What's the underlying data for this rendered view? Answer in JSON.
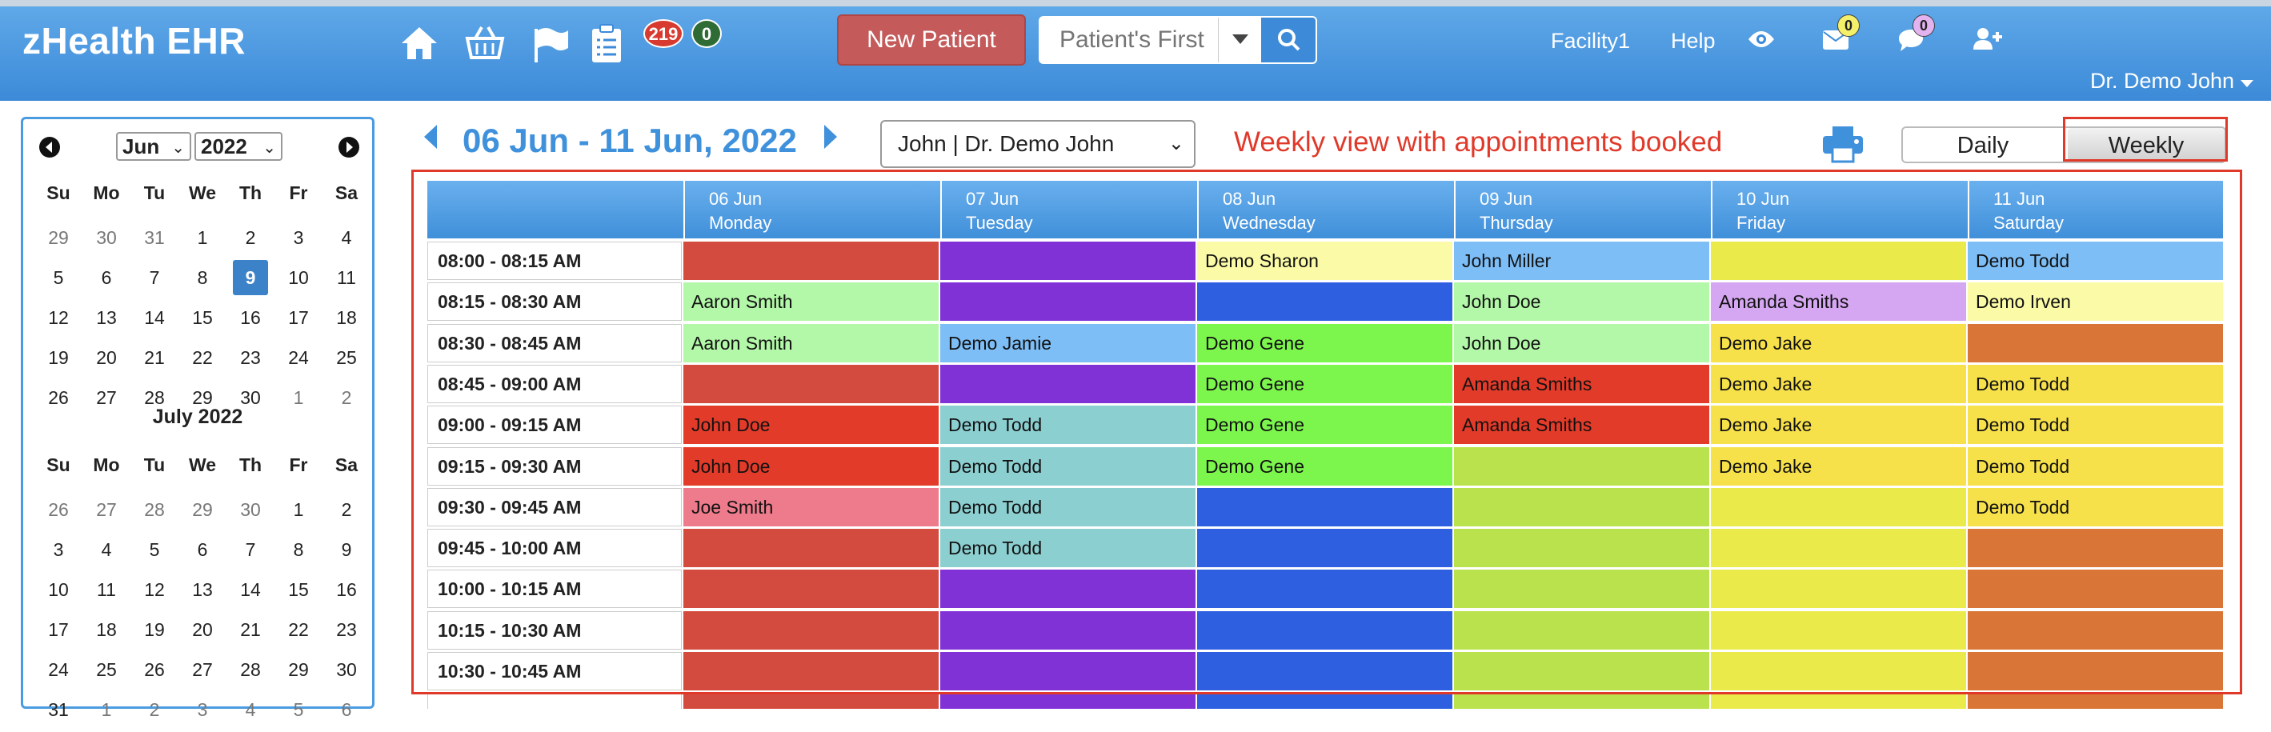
{
  "header": {
    "logo": "zHealth EHR",
    "badge_red": "219",
    "badge_green": "0",
    "new_patient_label": "New Patient",
    "search_placeholder": "Patient's First",
    "facility": "Facility1",
    "help": "Help",
    "mail_count": "0",
    "chat_count": "0",
    "user": "Dr. Demo John"
  },
  "calendar": {
    "month_value": "Jun",
    "year_value": "2022",
    "dow": [
      "Su",
      "Mo",
      "Tu",
      "We",
      "Th",
      "Fr",
      "Sa"
    ],
    "june_weeks": [
      [
        {
          "d": "29",
          "m": 1
        },
        {
          "d": "30",
          "m": 1
        },
        {
          "d": "31",
          "m": 1
        },
        {
          "d": "1"
        },
        {
          "d": "2"
        },
        {
          "d": "3"
        },
        {
          "d": "4"
        }
      ],
      [
        {
          "d": "5"
        },
        {
          "d": "6"
        },
        {
          "d": "7"
        },
        {
          "d": "8"
        },
        {
          "d": "9",
          "t": 1
        },
        {
          "d": "10"
        },
        {
          "d": "11"
        }
      ],
      [
        {
          "d": "12"
        },
        {
          "d": "13"
        },
        {
          "d": "14"
        },
        {
          "d": "15"
        },
        {
          "d": "16"
        },
        {
          "d": "17"
        },
        {
          "d": "18"
        }
      ],
      [
        {
          "d": "19"
        },
        {
          "d": "20"
        },
        {
          "d": "21"
        },
        {
          "d": "22"
        },
        {
          "d": "23"
        },
        {
          "d": "24"
        },
        {
          "d": "25"
        }
      ],
      [
        {
          "d": "26"
        },
        {
          "d": "27"
        },
        {
          "d": "28"
        },
        {
          "d": "29"
        },
        {
          "d": "30"
        },
        {
          "d": "1",
          "m": 1
        },
        {
          "d": "2",
          "m": 1
        }
      ]
    ],
    "july_title": "July 2022",
    "july_weeks": [
      [
        {
          "d": "26",
          "m": 1
        },
        {
          "d": "27",
          "m": 1
        },
        {
          "d": "28",
          "m": 1
        },
        {
          "d": "29",
          "m": 1
        },
        {
          "d": "30",
          "m": 1
        },
        {
          "d": "1"
        },
        {
          "d": "2"
        }
      ],
      [
        {
          "d": "3"
        },
        {
          "d": "4"
        },
        {
          "d": "5"
        },
        {
          "d": "6"
        },
        {
          "d": "7"
        },
        {
          "d": "8"
        },
        {
          "d": "9"
        }
      ],
      [
        {
          "d": "10"
        },
        {
          "d": "11"
        },
        {
          "d": "12"
        },
        {
          "d": "13"
        },
        {
          "d": "14"
        },
        {
          "d": "15"
        },
        {
          "d": "16"
        }
      ],
      [
        {
          "d": "17"
        },
        {
          "d": "18"
        },
        {
          "d": "19"
        },
        {
          "d": "20"
        },
        {
          "d": "21"
        },
        {
          "d": "22"
        },
        {
          "d": "23"
        }
      ],
      [
        {
          "d": "24"
        },
        {
          "d": "25"
        },
        {
          "d": "26"
        },
        {
          "d": "27"
        },
        {
          "d": "28"
        },
        {
          "d": "29"
        },
        {
          "d": "30"
        }
      ],
      [
        {
          "d": "31"
        },
        {
          "d": "1",
          "m": 1
        },
        {
          "d": "2",
          "m": 1
        },
        {
          "d": "3",
          "m": 1
        },
        {
          "d": "4",
          "m": 1
        },
        {
          "d": "5",
          "m": 1
        },
        {
          "d": "6",
          "m": 1
        }
      ]
    ]
  },
  "week": {
    "title": "06 Jun - 11 Jun, 2022",
    "provider": "John | Dr. Demo John",
    "annotation": "Weekly view with appointments booked",
    "daily_label": "Daily",
    "weekly_label": "Weekly"
  },
  "schedule": {
    "days": [
      {
        "date": "06 Jun",
        "day": "Monday"
      },
      {
        "date": "07 Jun",
        "day": "Tuesday"
      },
      {
        "date": "08 Jun",
        "day": "Wednesday"
      },
      {
        "date": "09 Jun",
        "day": "Thursday"
      },
      {
        "date": "10 Jun",
        "day": "Friday"
      },
      {
        "date": "11 Jun",
        "day": "Saturday"
      }
    ],
    "rows": [
      {
        "time": "08:00 - 08:15 AM",
        "cells": [
          {
            "c": "#d34a3e",
            "t": ""
          },
          {
            "c": "#8032d6",
            "t": ""
          },
          {
            "c": "#fbfaa6",
            "t": "Demo Sharon"
          },
          {
            "c": "#7dbef7",
            "t": "John Miller"
          },
          {
            "c": "#eaea4a",
            "t": ""
          },
          {
            "c": "#7dbef7",
            "t": "Demo Todd"
          }
        ]
      },
      {
        "time": "08:15 - 08:30 AM",
        "cells": [
          {
            "c": "#b3f7a8",
            "t": "Aaron Smith"
          },
          {
            "c": "#8032d6",
            "t": ""
          },
          {
            "c": "#2e5fe0",
            "t": ""
          },
          {
            "c": "#b3f7a8",
            "t": "John Doe"
          },
          {
            "c": "#d5a6f1",
            "t": "Amanda Smiths"
          },
          {
            "c": "#fbfaa6",
            "t": "Demo Irven"
          }
        ]
      },
      {
        "time": "08:30 - 08:45 AM",
        "cells": [
          {
            "c": "#b3f7a8",
            "t": "Aaron Smith"
          },
          {
            "c": "#7dbef7",
            "t": "Demo Jamie"
          },
          {
            "c": "#7cf64d",
            "t": "Demo Gene"
          },
          {
            "c": "#b3f7a8",
            "t": "John Doe"
          },
          {
            "c": "#f7e14a",
            "t": "Demo Jake"
          },
          {
            "c": "#d97537",
            "t": ""
          }
        ]
      },
      {
        "time": "08:45 - 09:00 AM",
        "cells": [
          {
            "c": "#d34a3e",
            "t": ""
          },
          {
            "c": "#8032d6",
            "t": ""
          },
          {
            "c": "#7cf64d",
            "t": "Demo Gene"
          },
          {
            "c": "#e33b29",
            "t": "Amanda Smiths"
          },
          {
            "c": "#f7e14a",
            "t": "Demo Jake"
          },
          {
            "c": "#f7e14a",
            "t": "Demo Todd"
          }
        ]
      },
      {
        "time": "09:00 - 09:15 AM",
        "cells": [
          {
            "c": "#e33b29",
            "t": "John Doe"
          },
          {
            "c": "#8ccfd1",
            "t": "Demo Todd"
          },
          {
            "c": "#7cf64d",
            "t": "Demo Gene"
          },
          {
            "c": "#e33b29",
            "t": "Amanda Smiths"
          },
          {
            "c": "#f7e14a",
            "t": "Demo Jake"
          },
          {
            "c": "#f7e14a",
            "t": "Demo Todd"
          }
        ]
      },
      {
        "time": "09:15 - 09:30 AM",
        "cells": [
          {
            "c": "#e33b29",
            "t": "John Doe"
          },
          {
            "c": "#8ccfd1",
            "t": "Demo Todd"
          },
          {
            "c": "#7cf64d",
            "t": "Demo Gene"
          },
          {
            "c": "#b9e24c",
            "t": ""
          },
          {
            "c": "#f7e14a",
            "t": "Demo Jake"
          },
          {
            "c": "#f7e14a",
            "t": "Demo Todd"
          }
        ]
      },
      {
        "time": "09:30 - 09:45 AM",
        "cells": [
          {
            "c": "#ee7b8c",
            "t": "Joe Smith"
          },
          {
            "c": "#8ccfd1",
            "t": "Demo Todd"
          },
          {
            "c": "#2e5fe0",
            "t": ""
          },
          {
            "c": "#b9e24c",
            "t": ""
          },
          {
            "c": "#eaea4a",
            "t": ""
          },
          {
            "c": "#f7e14a",
            "t": "Demo Todd"
          }
        ]
      },
      {
        "time": "09:45 - 10:00 AM",
        "cells": [
          {
            "c": "#d34a3e",
            "t": ""
          },
          {
            "c": "#8ccfd1",
            "t": "Demo Todd"
          },
          {
            "c": "#2e5fe0",
            "t": ""
          },
          {
            "c": "#b9e24c",
            "t": ""
          },
          {
            "c": "#eaea4a",
            "t": ""
          },
          {
            "c": "#d97537",
            "t": ""
          }
        ]
      },
      {
        "time": "10:00 - 10:15 AM",
        "cells": [
          {
            "c": "#d34a3e",
            "t": ""
          },
          {
            "c": "#8032d6",
            "t": ""
          },
          {
            "c": "#2e5fe0",
            "t": ""
          },
          {
            "c": "#b9e24c",
            "t": ""
          },
          {
            "c": "#eaea4a",
            "t": ""
          },
          {
            "c": "#d97537",
            "t": ""
          }
        ]
      },
      {
        "time": "10:15 - 10:30 AM",
        "cells": [
          {
            "c": "#d34a3e",
            "t": ""
          },
          {
            "c": "#8032d6",
            "t": ""
          },
          {
            "c": "#2e5fe0",
            "t": ""
          },
          {
            "c": "#b9e24c",
            "t": ""
          },
          {
            "c": "#eaea4a",
            "t": ""
          },
          {
            "c": "#d97537",
            "t": ""
          }
        ]
      },
      {
        "time": "10:30 - 10:45 AM",
        "cells": [
          {
            "c": "#d34a3e",
            "t": ""
          },
          {
            "c": "#8032d6",
            "t": ""
          },
          {
            "c": "#2e5fe0",
            "t": ""
          },
          {
            "c": "#b9e24c",
            "t": ""
          },
          {
            "c": "#eaea4a",
            "t": ""
          },
          {
            "c": "#d97537",
            "t": ""
          }
        ]
      },
      {
        "time": "",
        "cells": [
          {
            "c": "#d34a3e",
            "t": ""
          },
          {
            "c": "#8032d6",
            "t": ""
          },
          {
            "c": "#2e5fe0",
            "t": ""
          },
          {
            "c": "#b9e24c",
            "t": ""
          },
          {
            "c": "#eaea4a",
            "t": ""
          },
          {
            "c": "#d97537",
            "t": ""
          }
        ]
      }
    ]
  },
  "icons": {
    "home": "home-icon",
    "basket": "basket-icon",
    "flag": "flag-icon",
    "clipboard": "clipboard-icon",
    "search": "search-icon",
    "eye": "eye-icon",
    "mail": "mail-icon",
    "chat": "chat-icon",
    "add_user": "add-user-icon",
    "print": "print-icon"
  }
}
